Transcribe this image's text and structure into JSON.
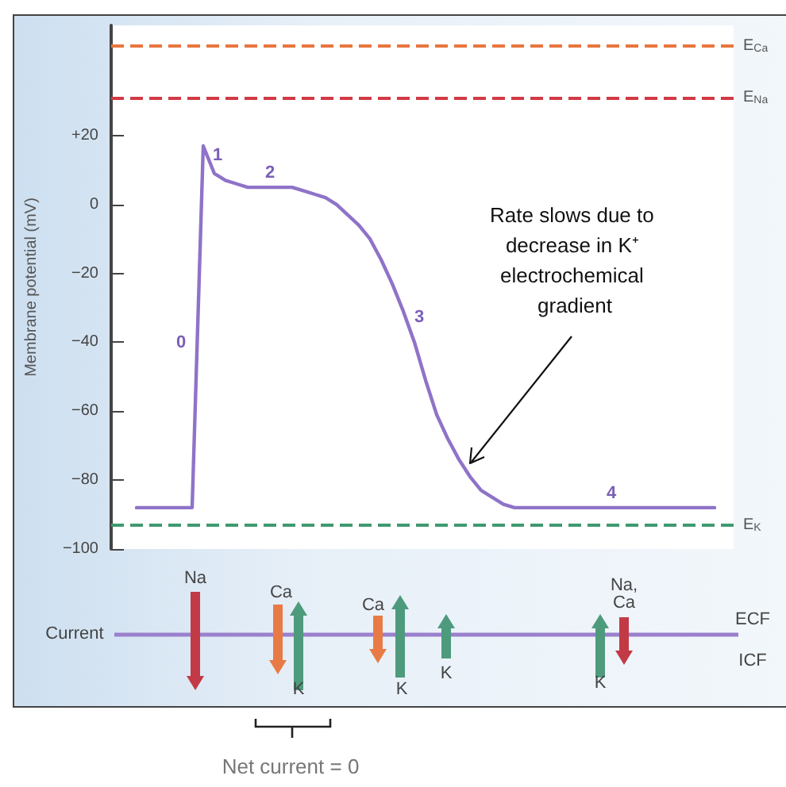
{
  "chart_data": {
    "type": "line",
    "ylabel": "Membrane potential (mV)",
    "categories": [
      null,
      null,
      null,
      null,
      null,
      null,
      null,
      null,
      null,
      null,
      null,
      null,
      null,
      null,
      null,
      null,
      null,
      null,
      null,
      null,
      null,
      null,
      null,
      null,
      null,
      null,
      null,
      null,
      null,
      null,
      null,
      null,
      null,
      null,
      null,
      null,
      null,
      null,
      null,
      null,
      null,
      null,
      null,
      null,
      null,
      null,
      null,
      null,
      null,
      null,
      null,
      null,
      null
    ],
    "series": [
      {
        "color": "#8f73c8",
        "values": [
          -88,
          -88,
          -88,
          -88,
          -88,
          -88,
          17,
          9,
          7,
          6,
          5,
          5,
          5,
          5,
          5,
          4,
          3,
          2,
          0,
          -3,
          -6,
          -10,
          -16,
          -23,
          -31,
          -40,
          -51,
          -61,
          -68,
          -74,
          -79,
          -83,
          -85,
          -87,
          -88,
          -88,
          -88,
          -88,
          -88,
          -88,
          -88,
          -88,
          -88,
          -88,
          -88,
          -88,
          -88,
          -88,
          -88,
          -88,
          -88,
          -88,
          -88
        ]
      }
    ],
    "ylim": [
      -100,
      52
    ],
    "yticks": [
      {
        "value": -100,
        "label": "−100"
      },
      {
        "value": -80,
        "label": "−80"
      },
      {
        "value": -60,
        "label": "−60"
      },
      {
        "value": -40,
        "label": "−40"
      },
      {
        "value": -20,
        "label": "−20"
      },
      0,
      {
        "value": 20,
        "label": "+20"
      }
    ],
    "tick_labels": "y",
    "ref_lines": [
      {
        "axis": "y",
        "value": 46,
        "label": "E$_{Ca}$",
        "color": "#e8763e",
        "line_style": "dashed"
      },
      {
        "axis": "y",
        "value": 31,
        "label": "E$_{Na}$",
        "color": "#d23a44",
        "line_style": "dashed"
      },
      {
        "axis": "y",
        "value": -93,
        "label": "E$_{K}$",
        "color": "#3f9a70",
        "line_style": "dashed"
      }
    ],
    "annotations": [
      "0",
      "1",
      "2",
      "3",
      "4",
      "Rate slows due to decrease in K⁺ electrochemical gradient",
      "Current",
      "ECF",
      "ICF",
      "Na",
      "Ca",
      "K",
      "Ca",
      "K",
      "K",
      "K",
      "Na, Ca",
      "Net current = 0"
    ]
  }
}
